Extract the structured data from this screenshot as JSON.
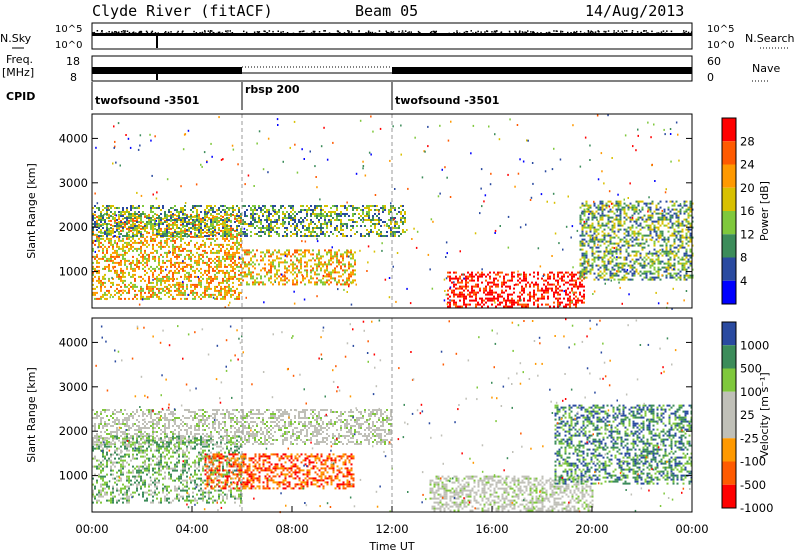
{
  "header": {
    "station": "Clyde River (fitACF)",
    "beam": "Beam 05",
    "date": "14/Aug/2013"
  },
  "nsky_panel": {
    "left_label": "N.Sky",
    "left_ticks": [
      "10^5",
      "10^0"
    ],
    "right_ticks": [
      "10^5",
      "10^0"
    ],
    "right_label": "N.Search"
  },
  "freq_panel": {
    "label_line1": "Freq.",
    "label_line2": "[MHz]",
    "left_ticks": [
      "18",
      "8"
    ],
    "right_ticks": [
      "60",
      "0"
    ],
    "right_label": "Nave"
  },
  "cpid": {
    "label": "CPID",
    "segments": [
      {
        "name": "twofsound -3501",
        "start_hour": 0,
        "end_hour": 6
      },
      {
        "name": "rbsp 200",
        "start_hour": 6,
        "end_hour": 12
      },
      {
        "name": "twofsound -3501",
        "start_hour": 12,
        "end_hour": 24
      }
    ]
  },
  "chart_data": [
    {
      "type": "heatmap",
      "title": "",
      "xlabel": "",
      "ylabel": "Slant Range [km]",
      "xlim_hours": [
        0,
        24
      ],
      "ylim_km": [
        180,
        4550
      ],
      "yticks": [
        1000,
        2000,
        3000,
        4000
      ],
      "colorbar": {
        "label": "Power [dB]",
        "ticks": [
          "28",
          "24",
          "20",
          "16",
          "12",
          "8",
          "4"
        ],
        "colors": [
          "#ff0000",
          "#ff5a00",
          "#ff9900",
          "#d8c000",
          "#7fc83c",
          "#3c8c5a",
          "#2a4aa0",
          "#0000ff"
        ]
      },
      "regions": [
        {
          "name": "near_echoes",
          "t_start": 0.0,
          "t_end": 6.0,
          "r_min": 400,
          "r_max": 2300,
          "level_db": 20
        },
        {
          "name": "far_band_morning",
          "t_start": 0.0,
          "t_end": 12.5,
          "r_min": 1800,
          "r_max": 2500,
          "level_db": 14
        },
        {
          "name": "mid_band",
          "t_start": 6.0,
          "t_end": 10.5,
          "r_min": 700,
          "r_max": 1500,
          "level_db": 22
        },
        {
          "name": "near_intense",
          "t_start": 14.2,
          "t_end": 19.7,
          "r_min": 200,
          "r_max": 1000,
          "level_db": 28
        },
        {
          "name": "evening_echoes",
          "t_start": 19.5,
          "t_end": 24.0,
          "r_min": 800,
          "r_max": 2600,
          "level_db": 14
        }
      ]
    },
    {
      "type": "heatmap",
      "title": "",
      "xlabel": "Time UT",
      "ylabel": "Slant Range [km]",
      "xlim_hours": [
        0,
        24
      ],
      "ylim_km": [
        180,
        4550
      ],
      "yticks": [
        1000,
        2000,
        3000,
        4000
      ],
      "xticks": [
        "00:00",
        "04:00",
        "08:00",
        "12:00",
        "16:00",
        "20:00",
        "00:00"
      ],
      "colorbar": {
        "label": "Velocity [m s⁻¹]",
        "ticks": [
          "1000",
          "500",
          "100",
          "25",
          "-25",
          "-100",
          "-500",
          "-1000"
        ],
        "colors": [
          "#2a4aa0",
          "#3c8c5a",
          "#7fc83c",
          "#c0c0b8",
          "#c0c0b8",
          "#ff9900",
          "#ff5a00",
          "#ff0000"
        ]
      },
      "regions": [
        {
          "name": "gray_band",
          "t_start": 0.0,
          "t_end": 12.0,
          "r_min": 1700,
          "r_max": 2500,
          "velocity": 0
        },
        {
          "name": "positive_flows",
          "t_start": 0.0,
          "t_end": 6.0,
          "r_min": 400,
          "r_max": 1900,
          "velocity": 300
        },
        {
          "name": "negative_flows",
          "t_start": 4.5,
          "t_end": 10.5,
          "r_min": 700,
          "r_max": 1500,
          "velocity": -300
        },
        {
          "name": "near_low",
          "t_start": 13.5,
          "t_end": 20.0,
          "r_min": 200,
          "r_max": 1000,
          "velocity": 0
        },
        {
          "name": "evening_positive",
          "t_start": 18.5,
          "t_end": 24.0,
          "r_min": 800,
          "r_max": 2600,
          "velocity": 500
        }
      ]
    }
  ]
}
